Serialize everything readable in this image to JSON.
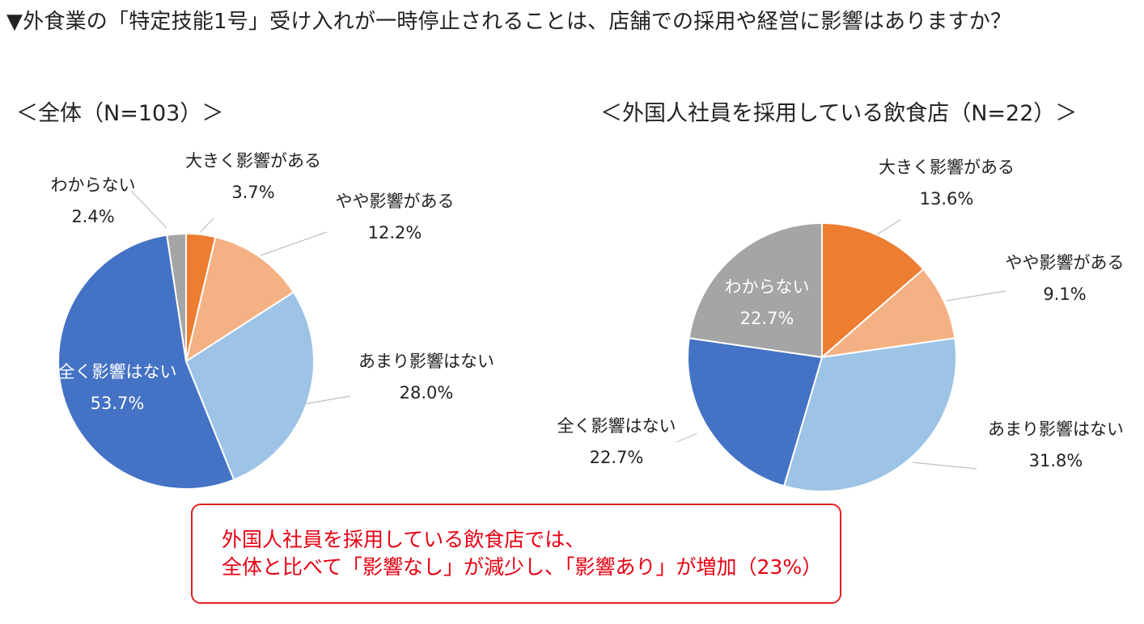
{
  "title": "▼外食業の「特定技能1号」受け入れが一時停止されることは、店舗での採用や経営に影響はありますか？",
  "left_title": "＜全体（N=103）＞",
  "right_title": "＜外国人社員を採用している飲食店（N=22）＞",
  "callout": {
    "line1": "外国人社員を採用している飲食店では、",
    "line2": "全体と比べて「影響なし」が減少し、「影響あり」が増加（23%）"
  },
  "colors": {
    "large": "#ED7D31",
    "some": "#F4B183",
    "little": "#9DC3E6",
    "none": "#4472C4",
    "unknown": "#A5A5A5"
  },
  "chart_data": [
    {
      "type": "pie",
      "title": "＜全体（N=103）＞",
      "slices": [
        {
          "label": "大きく影響がある",
          "value": 3.7,
          "value_label": "3.7%",
          "color": "#ED7D31"
        },
        {
          "label": "やや影響がある",
          "value": 12.2,
          "value_label": "12.2%",
          "color": "#F4B183"
        },
        {
          "label": "あまり影響はない",
          "value": 28.0,
          "value_label": "28.0%",
          "color": "#9DC3E6"
        },
        {
          "label": "全く影響はない",
          "value": 53.7,
          "value_label": "53.7%",
          "color": "#4472C4"
        },
        {
          "label": "わからない",
          "value": 2.4,
          "value_label": "2.4%",
          "color": "#A5A5A5"
        }
      ]
    },
    {
      "type": "pie",
      "title": "＜外国人社員を採用している飲食店（N=22）＞",
      "slices": [
        {
          "label": "大きく影響がある",
          "value": 13.6,
          "value_label": "13.6%",
          "color": "#ED7D31"
        },
        {
          "label": "やや影響がある",
          "value": 9.1,
          "value_label": "9.1%",
          "color": "#F4B183"
        },
        {
          "label": "あまり影響はない",
          "value": 31.8,
          "value_label": "31.8%",
          "color": "#9DC3E6"
        },
        {
          "label": "全く影響はない",
          "value": 22.7,
          "value_label": "22.7%",
          "color": "#4472C4"
        },
        {
          "label": "わからない",
          "value": 22.7,
          "value_label": "22.7%",
          "color": "#A5A5A5"
        }
      ]
    }
  ]
}
